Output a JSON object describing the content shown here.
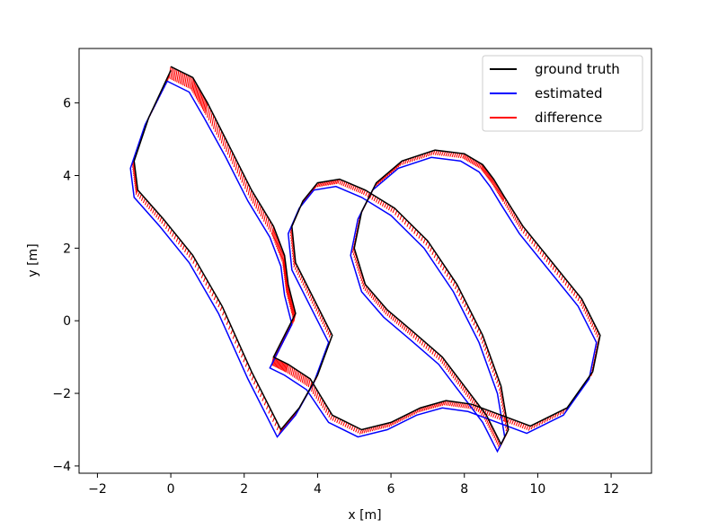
{
  "chart_data": {
    "type": "line",
    "title": "",
    "xlabel": "x [m]",
    "ylabel": "y [m]",
    "xlim": [
      -2.5,
      13.1
    ],
    "ylim": [
      -4.2,
      7.5
    ],
    "xticks": [
      -2,
      0,
      2,
      4,
      6,
      8,
      10,
      12
    ],
    "yticks": [
      -4,
      -2,
      0,
      2,
      4,
      6
    ],
    "grid": false,
    "legend_position": "top-right",
    "series": [
      {
        "name": "ground truth",
        "color": "#000000",
        "x": [
          0.0,
          0.6,
          1.0,
          1.6,
          2.2,
          2.8,
          3.1,
          3.2,
          3.4,
          3.0,
          2.8,
          3.2,
          3.8,
          4.4,
          5.2,
          6.0,
          6.8,
          7.5,
          8.2,
          9.0,
          9.8,
          10.8,
          11.5,
          11.7,
          11.2,
          10.4,
          9.6,
          9.1,
          8.8,
          8.5,
          8.0,
          7.2,
          6.3,
          5.6,
          5.2,
          5.0,
          5.3,
          5.9,
          6.6,
          7.4,
          8.0,
          8.6,
          9.0,
          9.2,
          9.0,
          8.5,
          7.8,
          7.0,
          6.1,
          5.3,
          4.6,
          4.0,
          3.6,
          3.3,
          3.4,
          3.9,
          4.4,
          4.0,
          3.5,
          3.0,
          2.2,
          1.4,
          0.6,
          -0.2,
          -0.9,
          -1.0,
          -0.6,
          0.0
        ],
        "y": [
          7.0,
          6.7,
          6.0,
          4.8,
          3.6,
          2.6,
          1.8,
          1.0,
          0.2,
          -0.6,
          -1.0,
          -1.2,
          -1.6,
          -2.6,
          -3.0,
          -2.8,
          -2.4,
          -2.2,
          -2.3,
          -2.6,
          -2.9,
          -2.4,
          -1.4,
          -0.4,
          0.6,
          1.6,
          2.6,
          3.4,
          3.9,
          4.3,
          4.6,
          4.7,
          4.4,
          3.8,
          3.0,
          2.0,
          1.0,
          0.3,
          -0.3,
          -1.0,
          -1.8,
          -2.6,
          -3.4,
          -3.0,
          -1.8,
          -0.4,
          1.0,
          2.2,
          3.1,
          3.6,
          3.9,
          3.8,
          3.3,
          2.6,
          1.6,
          0.6,
          -0.4,
          -1.5,
          -2.4,
          -3.0,
          -1.4,
          0.4,
          1.8,
          2.8,
          3.6,
          4.4,
          5.6,
          6.9
        ]
      },
      {
        "name": "estimated",
        "color": "#0000ff",
        "x": [
          -0.1,
          0.5,
          0.9,
          1.5,
          2.1,
          2.7,
          3.0,
          3.1,
          3.3,
          2.9,
          2.7,
          3.1,
          3.7,
          4.3,
          5.1,
          5.9,
          6.7,
          7.4,
          8.1,
          8.9,
          9.7,
          10.7,
          11.4,
          11.6,
          11.1,
          10.3,
          9.5,
          9.0,
          8.7,
          8.4,
          7.9,
          7.1,
          6.2,
          5.5,
          5.1,
          4.9,
          5.2,
          5.8,
          6.5,
          7.3,
          7.9,
          8.5,
          8.9,
          9.1,
          8.9,
          8.4,
          7.7,
          6.9,
          6.0,
          5.2,
          4.5,
          3.9,
          3.5,
          3.2,
          3.3,
          3.8,
          4.3,
          3.9,
          3.4,
          2.9,
          2.1,
          1.3,
          0.5,
          -0.3,
          -1.0,
          -1.1,
          -0.7,
          -0.1
        ],
        "y": [
          6.6,
          6.3,
          5.6,
          4.5,
          3.3,
          2.3,
          1.5,
          0.7,
          -0.1,
          -0.9,
          -1.3,
          -1.5,
          -1.9,
          -2.8,
          -3.2,
          -3.0,
          -2.6,
          -2.4,
          -2.5,
          -2.8,
          -3.1,
          -2.6,
          -1.6,
          -0.6,
          0.4,
          1.4,
          2.4,
          3.2,
          3.7,
          4.1,
          4.4,
          4.5,
          4.2,
          3.6,
          2.8,
          1.8,
          0.8,
          0.1,
          -0.5,
          -1.2,
          -2.0,
          -2.8,
          -3.6,
          -3.2,
          -2.0,
          -0.6,
          0.8,
          2.0,
          2.9,
          3.4,
          3.7,
          3.6,
          3.1,
          2.4,
          1.4,
          0.4,
          -0.6,
          -1.7,
          -2.6,
          -3.2,
          -1.6,
          0.2,
          1.6,
          2.6,
          3.4,
          4.2,
          5.4,
          6.6
        ]
      },
      {
        "name": "difference",
        "color": "#ff0000",
        "x": [],
        "y": []
      }
    ]
  }
}
